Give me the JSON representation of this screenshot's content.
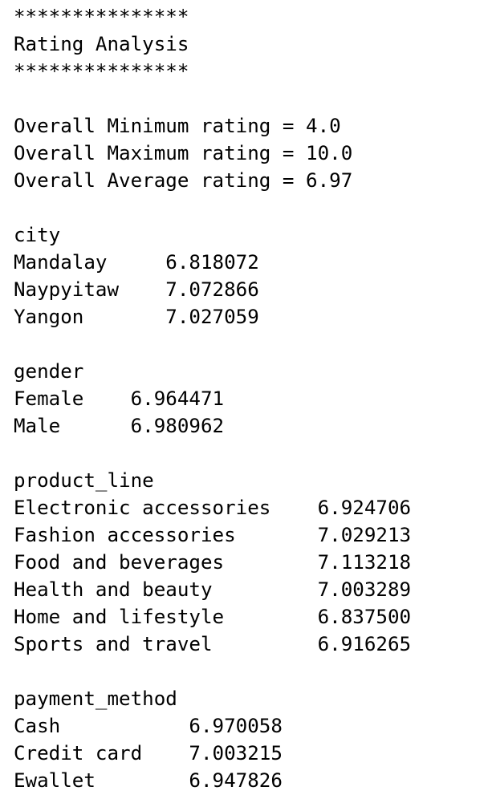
{
  "banner_top": "***************",
  "title": "Rating Analysis",
  "banner_bottom": "***************",
  "overall": {
    "min": "Overall Minimum rating = 4.0",
    "max": "Overall Maximum rating = 10.0",
    "avg": "Overall Average rating = 6.97"
  },
  "city": {
    "header": "city",
    "rows": [
      "Mandalay     6.818072",
      "Naypyitaw    7.072866",
      "Yangon       7.027059"
    ]
  },
  "gender": {
    "header": "gender",
    "rows": [
      "Female    6.964471",
      "Male      6.980962"
    ]
  },
  "product_line": {
    "header": "product_line",
    "rows": [
      "Electronic accessories    6.924706",
      "Fashion accessories       7.029213",
      "Food and beverages        7.113218",
      "Health and beauty         7.003289",
      "Home and lifestyle        6.837500",
      "Sports and travel         6.916265"
    ]
  },
  "payment_method": {
    "header": "payment_method",
    "rows": [
      "Cash           6.970058",
      "Credit card    7.003215",
      "Ewallet        6.947826"
    ]
  }
}
